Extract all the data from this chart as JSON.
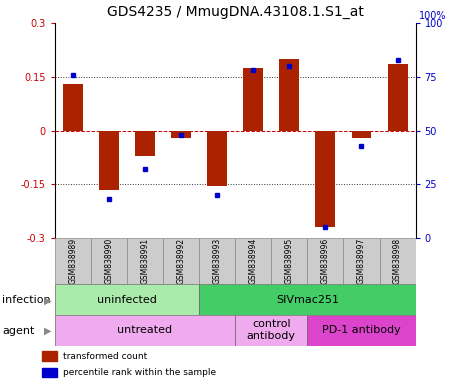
{
  "title": "GDS4235 / MmugDNA.43108.1.S1_at",
  "samples": [
    "GSM838989",
    "GSM838990",
    "GSM838991",
    "GSM838992",
    "GSM838993",
    "GSM838994",
    "GSM838995",
    "GSM838996",
    "GSM838997",
    "GSM838998"
  ],
  "transformed_count": [
    0.13,
    -0.165,
    -0.07,
    -0.02,
    -0.155,
    0.175,
    0.2,
    -0.27,
    -0.02,
    0.185
  ],
  "percentile_rank": [
    76,
    18,
    32,
    48,
    20,
    78,
    80,
    5,
    43,
    83
  ],
  "ylim": [
    -0.3,
    0.3
  ],
  "y_left_ticks": [
    -0.3,
    -0.15,
    0,
    0.15,
    0.3
  ],
  "y_right_ticks": [
    0,
    25,
    50,
    75,
    100
  ],
  "bar_color": "#aa2200",
  "dot_color": "#0000cc",
  "infection_labels": [
    {
      "text": "uninfected",
      "start": 0,
      "end": 3,
      "color": "#aaeaaa"
    },
    {
      "text": "SIVmac251",
      "start": 4,
      "end": 9,
      "color": "#44cc66"
    }
  ],
  "agent_labels": [
    {
      "text": "untreated",
      "start": 0,
      "end": 4,
      "color": "#f0aaee"
    },
    {
      "text": "control\nantibody",
      "start": 5,
      "end": 6,
      "color": "#f0aaee"
    },
    {
      "text": "PD-1 antibody",
      "start": 7,
      "end": 9,
      "color": "#dd44cc"
    }
  ],
  "legend_items": [
    {
      "label": "transformed count",
      "color": "#aa2200"
    },
    {
      "label": "percentile rank within the sample",
      "color": "#0000cc"
    }
  ],
  "title_fontsize": 10,
  "tick_fontsize": 7,
  "label_fontsize": 8,
  "sample_fontsize": 5.5
}
